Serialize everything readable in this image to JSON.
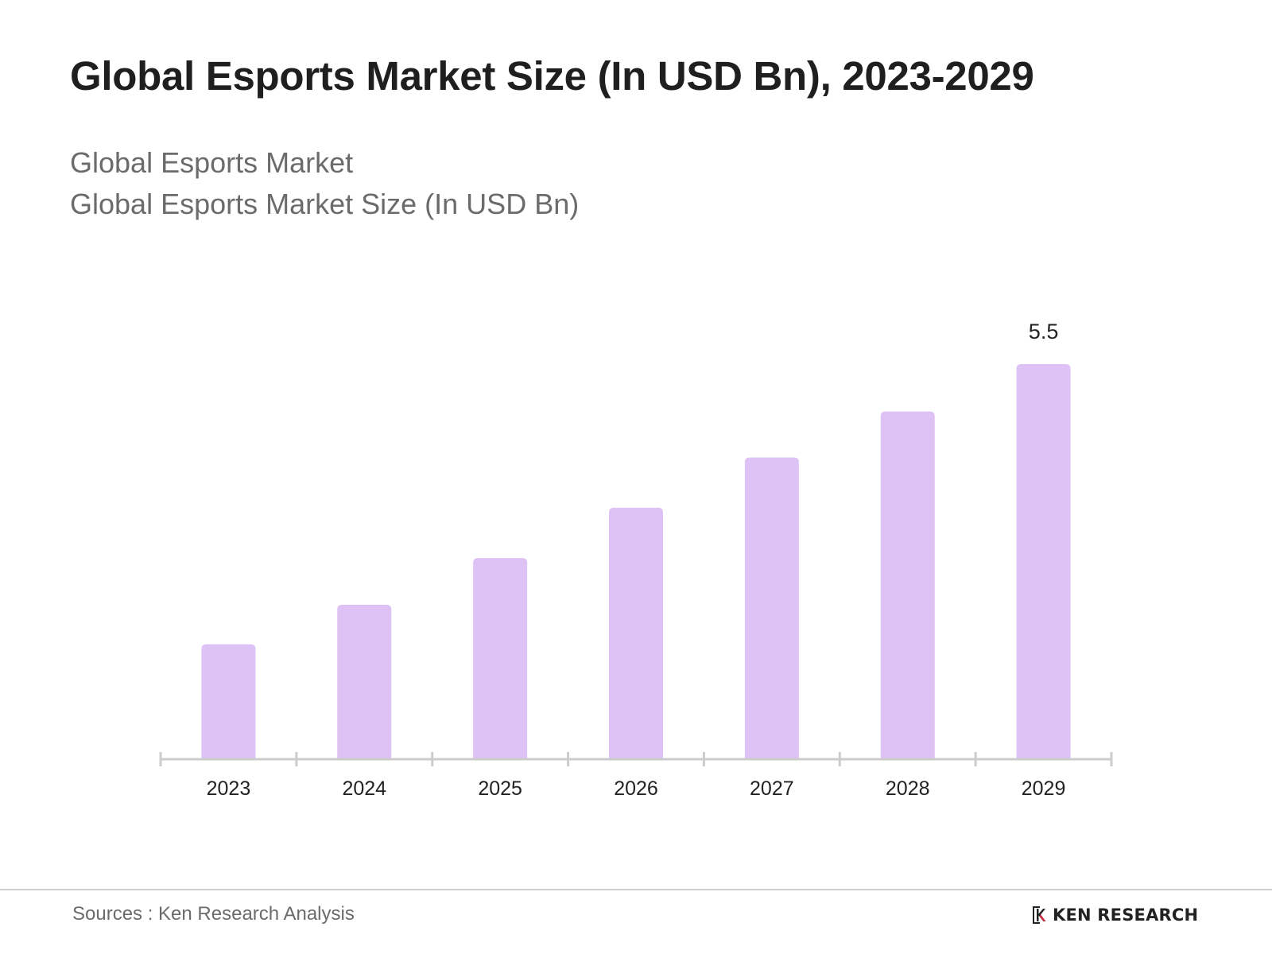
{
  "header": {
    "title": "Global Esports Market Size (In USD Bn), 2023-2029",
    "subtitle_1": "Global Esports Market",
    "subtitle_2": "Global Esports Market Size (In USD Bn)"
  },
  "footer": {
    "source": "Sources : Ken Research Analysis",
    "logo_text": "KEN RESEARCH"
  },
  "colors": {
    "bar": "#dec2f6",
    "axis": "#cccccc",
    "label": "#222222"
  },
  "chart_data": {
    "type": "bar",
    "title": "Global Esports Market Size (In USD Bn), 2023-2029",
    "xlabel": "",
    "ylabel": "",
    "categories": [
      "2023",
      "2024",
      "2025",
      "2026",
      "2027",
      "2028",
      "2029"
    ],
    "values": [
      1.6,
      2.15,
      2.8,
      3.5,
      4.2,
      4.84,
      5.5
    ],
    "data_labels": [
      null,
      null,
      null,
      null,
      null,
      null,
      "5.5"
    ],
    "ylim": [
      0,
      5.5
    ],
    "grid": false,
    "legend": "none"
  }
}
